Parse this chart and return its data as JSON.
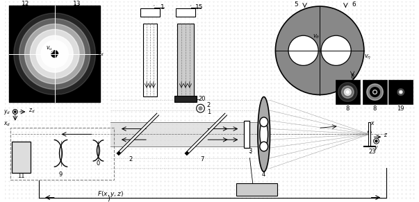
{
  "fig_width": 6.03,
  "fig_height": 2.91,
  "dpi": 100,
  "bg_color": "#ffffff",
  "dot_color": "#bbbbbb",
  "black": "#000000",
  "gray": "#888888",
  "lgray": "#cccccc",
  "dgray": "#333333"
}
